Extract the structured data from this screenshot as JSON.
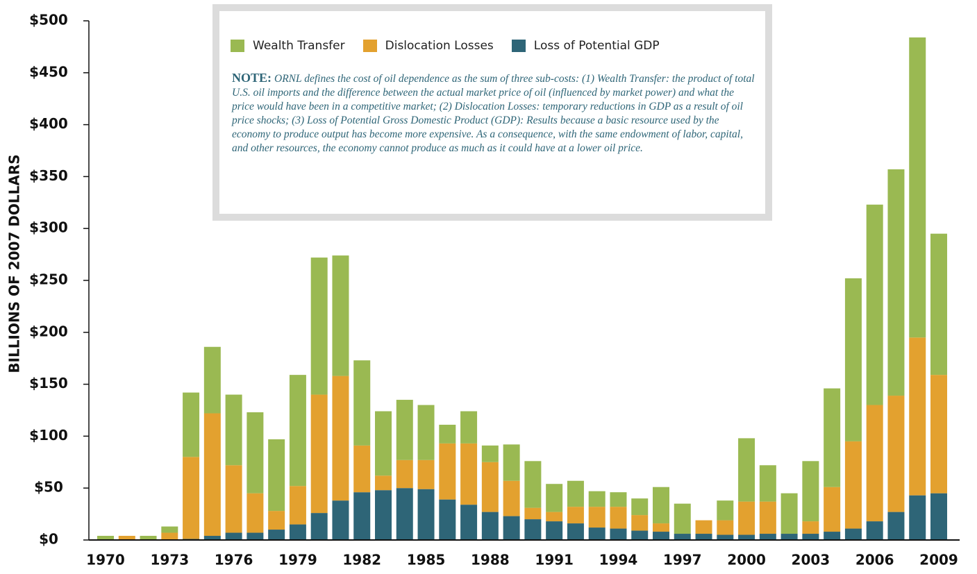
{
  "chart_data": {
    "type": "stacked_bar",
    "y_label": "BILLIONS OF 2007 DOLLARS",
    "note_label": "NOTE:",
    "note": "ORNL defines the cost of oil dependence as the sum of three sub-costs: (1) Wealth Transfer: the product of total U.S. oil imports and the difference between the actual market price of oil (influenced by market power) and what the price would have been in a competitive market; (2) Dislocation Losses: temporary reductions in GDP as a result of oil price shocks; (3) Loss of Potential Gross Domestic Product (GDP): Results because a basic resource used by the economy to produce output has become more expensive.  As a consequence, with the same endowment of labor, capital, and other resources, the economy cannot produce as much as it could have at a lower oil price.",
    "categories": [
      "1970",
      null,
      null,
      "1973",
      null,
      null,
      "1976",
      null,
      null,
      "1979",
      null,
      null,
      "1982",
      null,
      null,
      "1985",
      null,
      null,
      "1988",
      null,
      null,
      "1991",
      null,
      null,
      "1994",
      null,
      null,
      "1997",
      null,
      null,
      "2000",
      null,
      null,
      "2003",
      null,
      null,
      "2006",
      null,
      null,
      "2009"
    ],
    "series": [
      {
        "name": "Wealth Transfer",
        "color": "#9ab952",
        "values": [
          4,
          0,
          4,
          6,
          62,
          64,
          68,
          78,
          69,
          107,
          132,
          116,
          82,
          62,
          58,
          53,
          18,
          31,
          16,
          35,
          45,
          27,
          25,
          15,
          14,
          16,
          35,
          29,
          0,
          19,
          61,
          35,
          39,
          58,
          95,
          157,
          193,
          218,
          289,
          136
        ]
      },
      {
        "name": "Dislocation Losses",
        "color": "#e3a12f",
        "values": [
          0,
          4,
          0,
          7,
          79,
          118,
          65,
          38,
          18,
          37,
          114,
          120,
          45,
          14,
          27,
          28,
          54,
          59,
          48,
          34,
          11,
          9,
          16,
          20,
          21,
          15,
          8,
          0,
          13,
          14,
          32,
          31,
          0,
          12,
          43,
          84,
          112,
          112,
          152,
          114
        ]
      },
      {
        "name": "Loss of Potential GDP",
        "color": "#2e6577",
        "values": [
          0,
          0,
          0,
          0,
          1,
          4,
          7,
          7,
          10,
          15,
          26,
          38,
          46,
          48,
          50,
          49,
          39,
          34,
          27,
          23,
          20,
          18,
          16,
          12,
          11,
          9,
          8,
          6,
          6,
          5,
          5,
          6,
          6,
          6,
          8,
          11,
          18,
          27,
          43,
          45
        ]
      }
    ],
    "ylim": [
      0,
      500
    ],
    "yticks": [
      {
        "value": 0,
        "label": "$0"
      },
      {
        "value": 50,
        "label": "$50"
      },
      {
        "value": 100,
        "label": "$100"
      },
      {
        "value": 150,
        "label": "$150"
      },
      {
        "value": 200,
        "label": "$200"
      },
      {
        "value": 250,
        "label": "$250"
      },
      {
        "value": 300,
        "label": "$300"
      },
      {
        "value": 350,
        "label": "$350"
      },
      {
        "value": 400,
        "label": "$400"
      },
      {
        "value": 450,
        "label": "$450"
      },
      {
        "value": 500,
        "label": "$500"
      }
    ]
  }
}
